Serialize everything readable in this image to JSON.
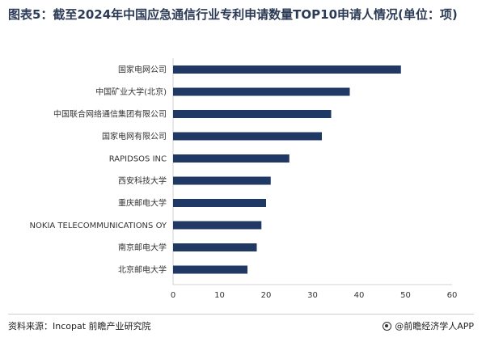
{
  "title": "图表5：截至2024年中国应急通信行业专利申请数量TOP10申请人情况(单位：项)",
  "source": "资料来源：Incopat 前瞻产业研究院",
  "brand": "@前瞻经济学人APP",
  "colors": {
    "bar": "#1f3864",
    "axis": "#d0d0d0"
  },
  "chart_data": {
    "type": "bar",
    "orientation": "horizontal",
    "categories": [
      "国家电网公司",
      "中国矿业大学(北京)",
      "中国联合网络通信集团有限公司",
      "国家电网有限公司",
      "RAPIDSOS INC",
      "西安科技大学",
      "重庆邮电大学",
      "NOKIA TELECOMMUNICATIONS OY",
      "南京邮电大学",
      "北京邮电大学"
    ],
    "values": [
      49,
      38,
      34,
      32,
      25,
      21,
      20,
      19,
      18,
      16
    ],
    "xlim": [
      0,
      60
    ],
    "xticks": [
      0,
      10,
      20,
      30,
      40,
      50,
      60
    ],
    "grid": false,
    "legend": "none"
  }
}
